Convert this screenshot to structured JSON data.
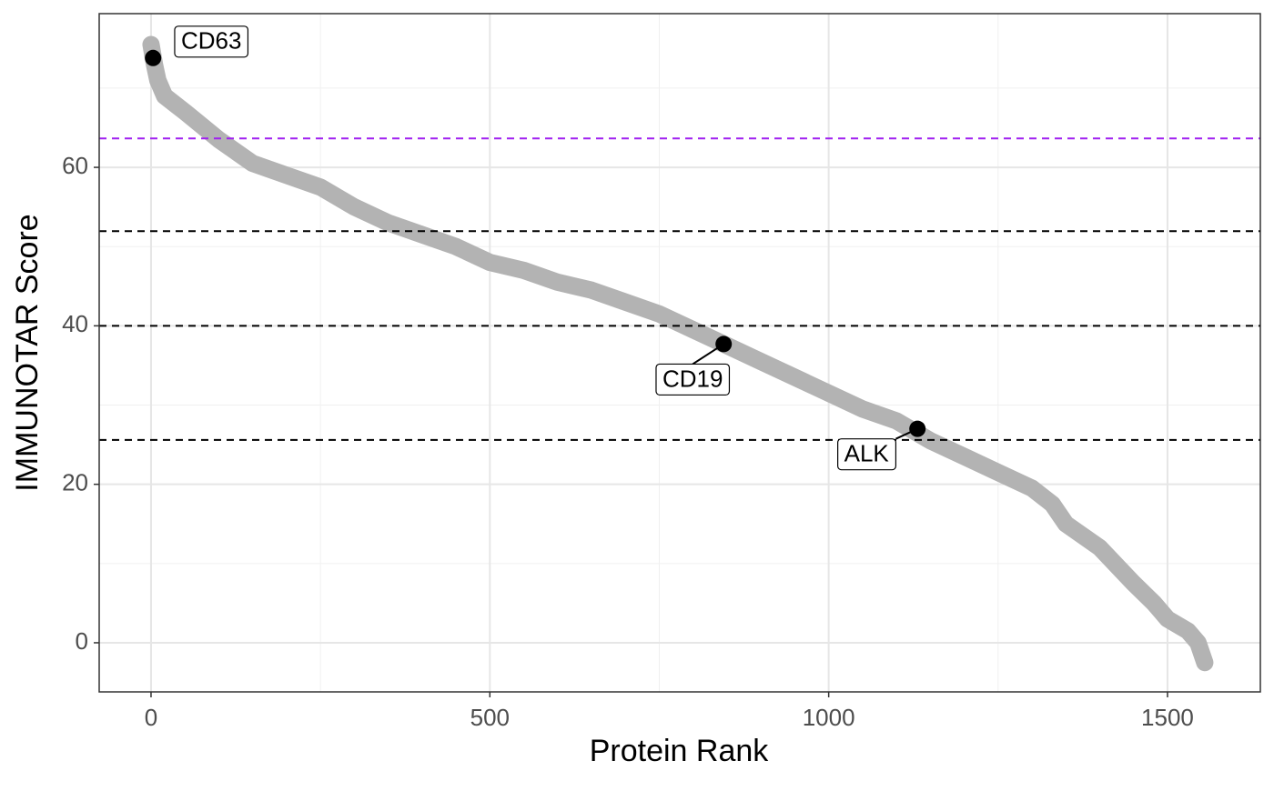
{
  "chart_data": {
    "type": "scatter",
    "x_label": "Protein Rank",
    "y_label": "IMMUNOTAR Score",
    "xlim": [
      -76.5,
      1637
    ],
    "ylim": [
      -6.2,
      79.4
    ],
    "xticks": [
      0,
      500,
      1000,
      1500
    ],
    "yticks": [
      0,
      20,
      40,
      60
    ],
    "xminor": [
      250,
      750,
      1250
    ],
    "yminor": [
      10,
      30,
      50,
      70
    ],
    "grid": true,
    "series": [
      {
        "color": "#b3b3b3",
        "x": [
          0,
          5,
          10,
          20,
          50,
          100,
          150,
          200,
          250,
          300,
          350,
          400,
          450,
          500,
          550,
          600,
          650,
          700,
          750,
          800,
          850,
          900,
          950,
          1000,
          1050,
          1100,
          1150,
          1200,
          1250,
          1300,
          1330,
          1350,
          1400,
          1450,
          1480,
          1500,
          1530,
          1545,
          1555
        ],
        "values": [
          75.5,
          73,
          71,
          69,
          67,
          63.5,
          60.5,
          59,
          57.5,
          55,
          53,
          51.5,
          50,
          48,
          47,
          45.5,
          44.5,
          43,
          41.5,
          39.5,
          37.5,
          35.5,
          33.5,
          31.5,
          29.5,
          28,
          25.5,
          23.5,
          21.5,
          19.5,
          17.5,
          15,
          12,
          7.5,
          5,
          3,
          1.5,
          0,
          -2.5
        ]
      },
      {
        "color": "#000000",
        "x": [
          3,
          845,
          1131
        ],
        "values": [
          73.8,
          37.7,
          27
        ],
        "point_labels": [
          "CD63",
          "CD19",
          "ALK"
        ]
      }
    ],
    "hlines": [
      {
        "value": 63.65,
        "color": "#a020f0"
      },
      {
        "value": 51.95,
        "color": "#000000"
      },
      {
        "value": 40,
        "color": "#000000"
      },
      {
        "value": 25.6,
        "color": "#000000"
      }
    ]
  }
}
